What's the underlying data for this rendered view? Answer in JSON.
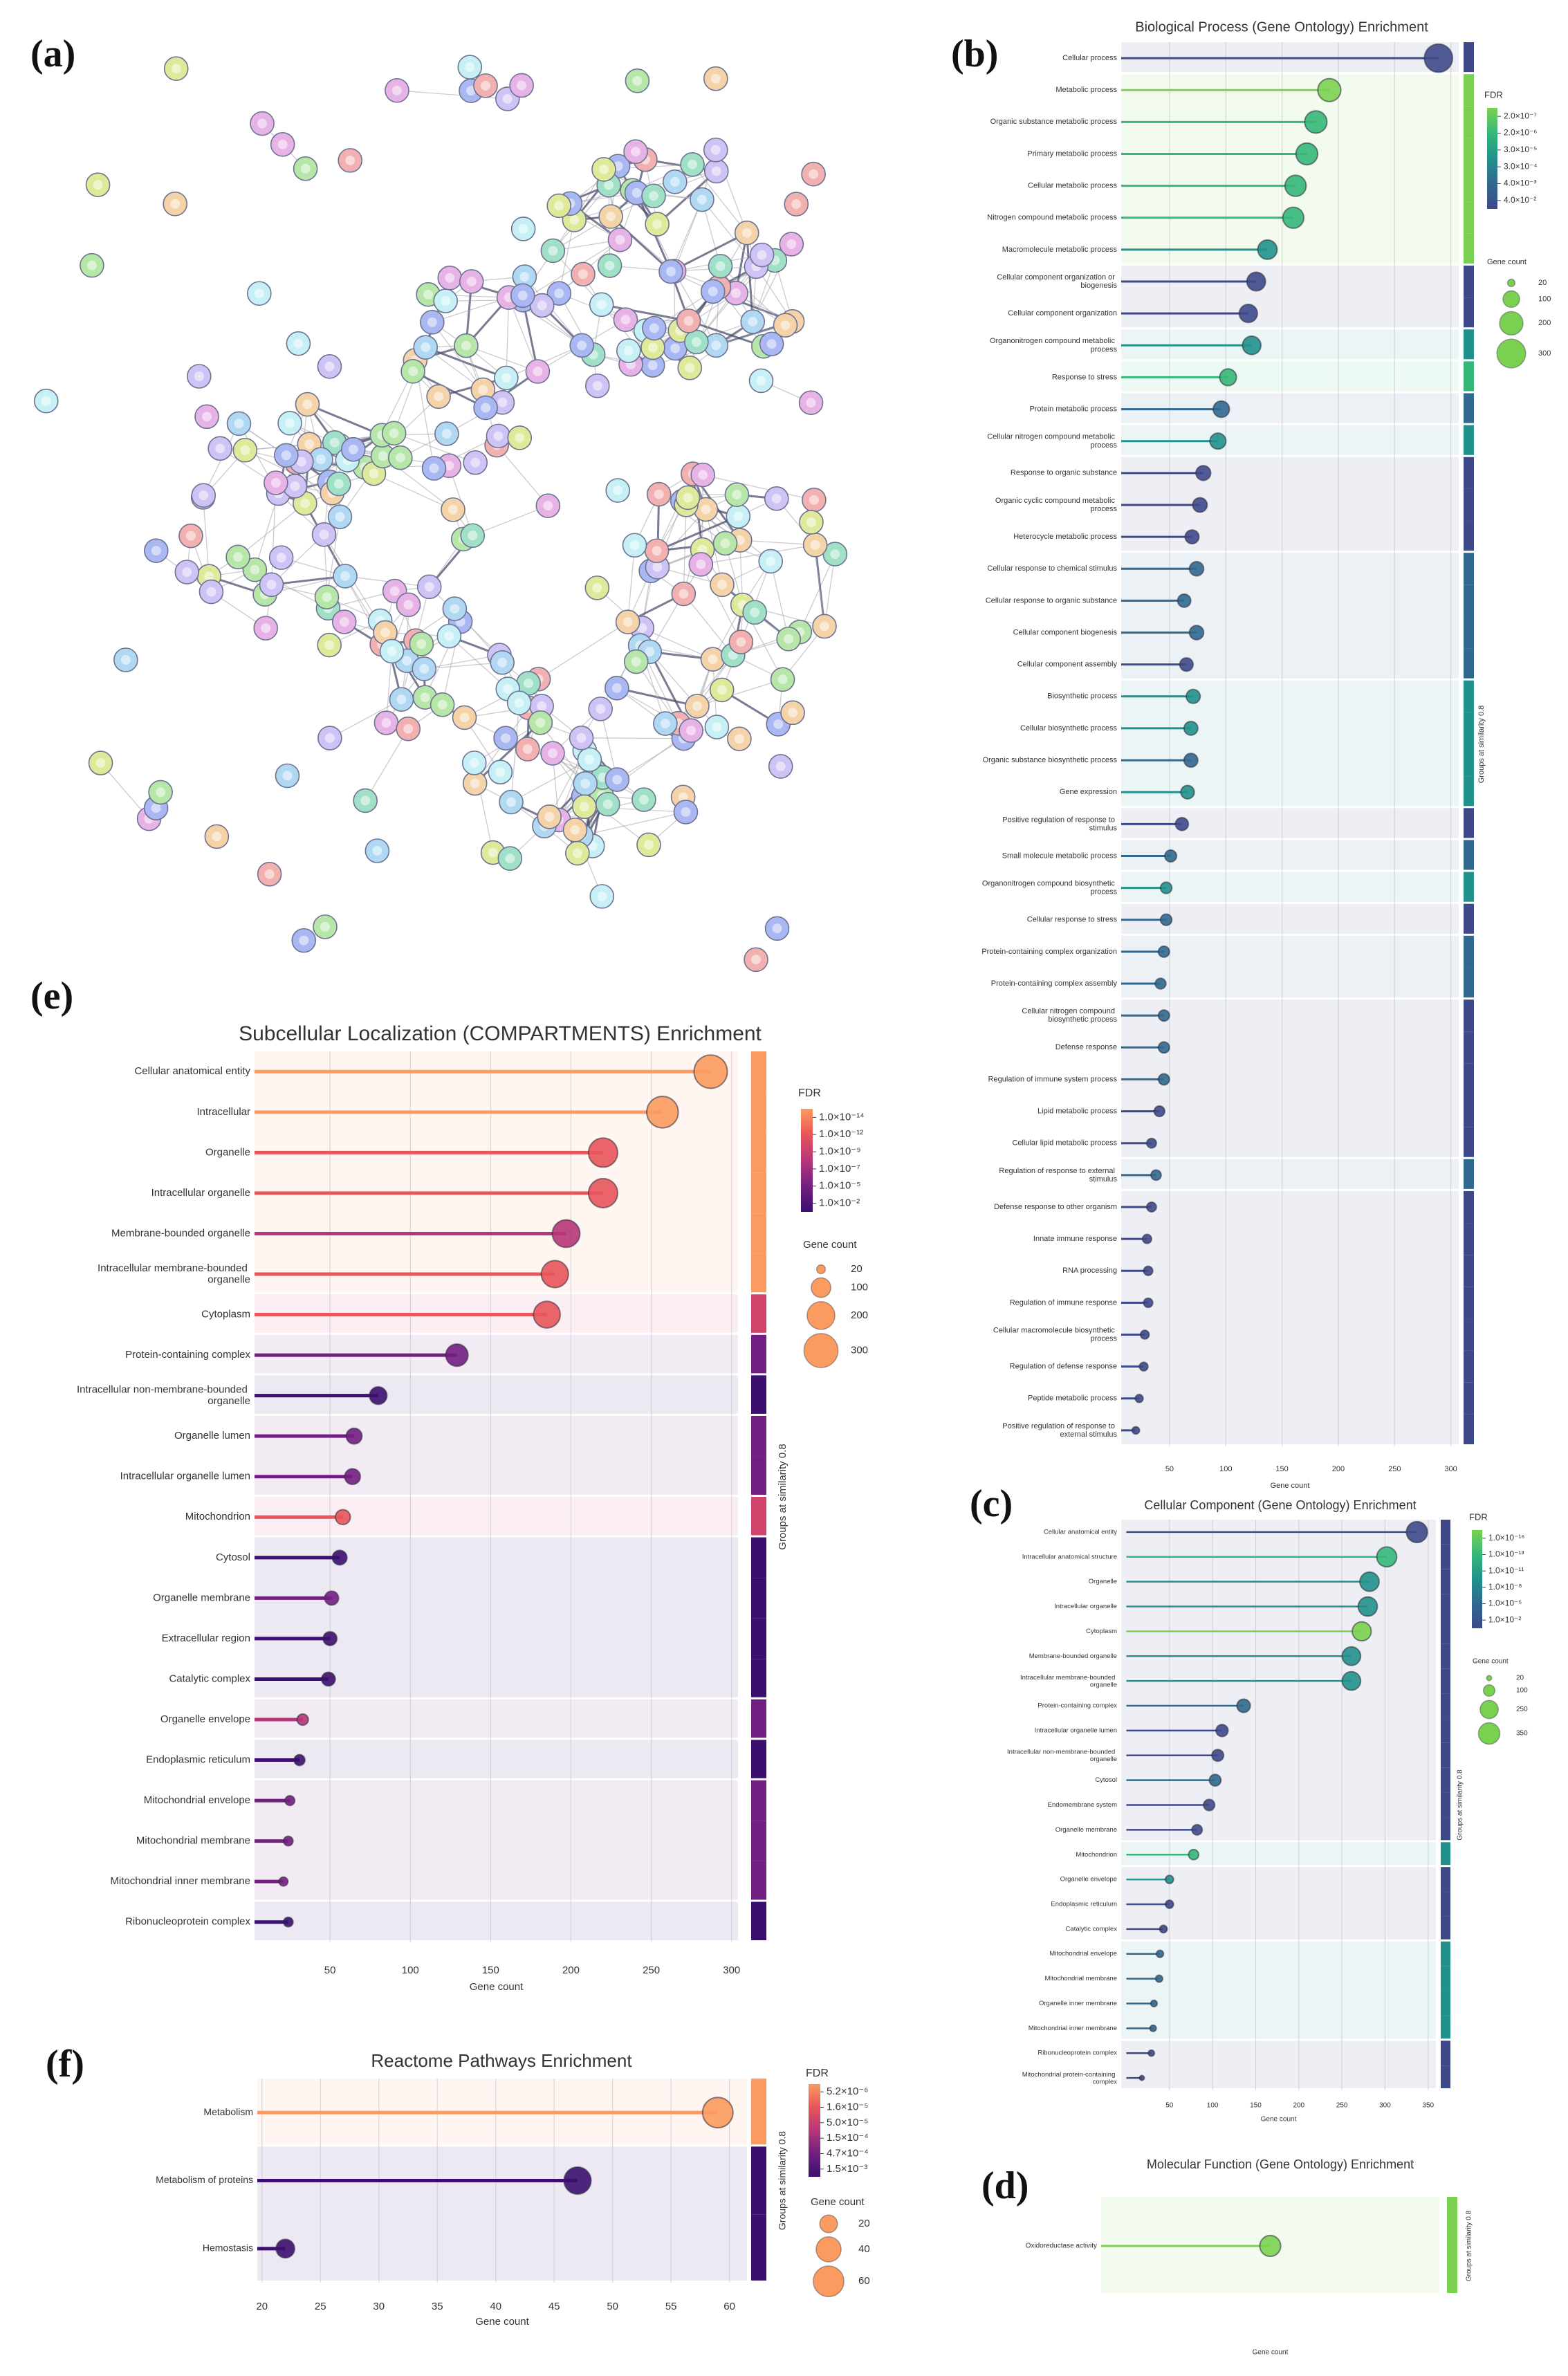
{
  "network_panel": "(a)",
  "chart_data": [
    {
      "type": "lollipop",
      "panel": "(b)",
      "title": "Biological Process (Gene Ontology) Enrichment",
      "categories": [
        "Cellular process",
        "Metabolic process",
        "Organic substance metabolic process",
        "Primary metabolic process",
        "Cellular metabolic process",
        "Nitrogen compound metabolic process",
        "Macromolecule metabolic process",
        "Cellular component organization or biogenesis",
        "Cellular component organization",
        "Organonitrogen compound metabolic process",
        "Response to stress",
        "Protein metabolic process",
        "Cellular nitrogen compound metabolic process",
        "Response to organic substance",
        "Organic cyclic compound metabolic process",
        "Heterocycle metabolic process",
        "Cellular response to chemical stimulus",
        "Cellular response to organic substance",
        "Cellular component biogenesis",
        "Cellular component assembly",
        "Biosynthetic process",
        "Cellular biosynthetic process",
        "Organic substance biosynthetic process",
        "Gene expression",
        "Positive regulation of response to stimulus",
        "Small molecule metabolic process",
        "Organonitrogen compound biosynthetic process",
        "Cellular response to stress",
        "Protein-containing complex organization",
        "Protein-containing complex assembly",
        "Cellular nitrogen compound biosynthetic process",
        "Defense response",
        "Regulation of immune system process",
        "Lipid metabolic process",
        "Cellular lipid metabolic process",
        "Regulation of response to external stimulus",
        "Defense response to other organism",
        "Innate immune response",
        "RNA processing",
        "Regulation of immune response",
        "Cellular macromolecule biosynthetic process",
        "Regulation of defense response",
        "Peptide metabolic process",
        "Positive regulation of response to external stimulus"
      ],
      "values": [
        289,
        192,
        180,
        172,
        162,
        160,
        137,
        127,
        120,
        123,
        102,
        96,
        93,
        80,
        77,
        70,
        74,
        63,
        74,
        65,
        71,
        69,
        69,
        66,
        61,
        51,
        47,
        47,
        45,
        42,
        45,
        45,
        45,
        41,
        34,
        38,
        34,
        30,
        31,
        31,
        28,
        27,
        23,
        20
      ],
      "colors": [
        "#3e4989",
        "#7ad151",
        "#35b779",
        "#35b779",
        "#35b779",
        "#35b779",
        "#21918c",
        "#3e4989",
        "#3e4989",
        "#21918c",
        "#35b779",
        "#31688e",
        "#21918c",
        "#3e4989",
        "#3e4989",
        "#3e4989",
        "#31688e",
        "#31688e",
        "#31688e",
        "#3e4989",
        "#21918c",
        "#21918c",
        "#31688e",
        "#21918c",
        "#3e4989",
        "#31688e",
        "#21918c",
        "#31688e",
        "#31688e",
        "#31688e",
        "#31688e",
        "#31688e",
        "#31688e",
        "#3e4989",
        "#3e4989",
        "#31688e",
        "#3e4989",
        "#3e4989",
        "#3e4989",
        "#3e4989",
        "#3e4989",
        "#3e4989",
        "#3e4989",
        "#3e4989"
      ],
      "group_colors": [
        "#3e4989",
        "#7ad151",
        "#7ad151",
        "#7ad151",
        "#7ad151",
        "#7ad151",
        "#7ad151",
        "#3e4989",
        "#3e4989",
        "#21918c",
        "#35b779",
        "#31688e",
        "#21918c",
        "#3e4989",
        "#3e4989",
        "#3e4989",
        "#31688e",
        "#31688e",
        "#31688e",
        "#31688e",
        "#21918c",
        "#21918c",
        "#21918c",
        "#21918c",
        "#3e4989",
        "#31688e",
        "#21918c",
        "#3e4989",
        "#31688e",
        "#31688e",
        "#3e4989",
        "#3e4989",
        "#3e4989",
        "#3e4989",
        "#3e4989",
        "#31688e",
        "#3e4989",
        "#3e4989",
        "#3e4989",
        "#3e4989",
        "#3e4989",
        "#3e4989",
        "#3e4989",
        "#3e4989"
      ],
      "xlim": [
        7,
        307
      ],
      "xticks": [
        50,
        100,
        150,
        200,
        250,
        300
      ],
      "xlabel": "Gene count",
      "grid": true,
      "group_label": "Groups at similarity 0.8",
      "fdr_legend": {
        "title": "FDR",
        "labels": [
          "2.0×10⁻⁷",
          "2.0×10⁻⁶",
          "3.0×10⁻⁵",
          "3.0×10⁻⁴",
          "4.0×10⁻³",
          "4.0×10⁻²"
        ],
        "colors": [
          "#7ad151",
          "#35b779",
          "#21918c",
          "#31688e",
          "#3e4989"
        ]
      },
      "size_legend": {
        "title": "Gene count",
        "values": [
          20,
          100,
          200,
          300
        ],
        "color": "#7ad151"
      }
    },
    {
      "type": "lollipop",
      "panel": "(c)",
      "title": "Cellular Component (Gene Ontology) Enrichment",
      "categories": [
        "Cellular anatomical entity",
        "Intracellular anatomical structure",
        "Organelle",
        "Intracellular organelle",
        "Cytoplasm",
        "Membrane-bounded organelle",
        "Intracellular membrane-bounded organelle",
        "Protein-containing complex",
        "Intracellular organelle lumen",
        "Intracellular non-membrane-bounded organelle",
        "Cytosol",
        "Endomembrane system",
        "Organelle membrane",
        "Mitochondrion",
        "Organelle envelope",
        "Endoplasmic reticulum",
        "Catalytic complex",
        "Mitochondrial envelope",
        "Mitochondrial membrane",
        "Organelle inner membrane",
        "Mitochondrial inner membrane",
        "Ribonucleoprotein complex",
        "Mitochondrial protein-containing complex"
      ],
      "values": [
        337,
        302,
        282,
        280,
        273,
        261,
        261,
        136,
        111,
        106,
        103,
        96,
        82,
        78,
        50,
        50,
        43,
        39,
        38,
        32,
        31,
        29,
        18
      ],
      "colors": [
        "#3e4989",
        "#35b779",
        "#21918c",
        "#21918c",
        "#7ad151",
        "#21918c",
        "#21918c",
        "#31688e",
        "#3e4989",
        "#3e4989",
        "#31688e",
        "#3e4989",
        "#3e4989",
        "#35b779",
        "#21918c",
        "#3e4989",
        "#3e4989",
        "#31688e",
        "#31688e",
        "#31688e",
        "#31688e",
        "#3e4989",
        "#3e4989"
      ],
      "group_colors": [
        "#3e4989",
        "#3e4989",
        "#3e4989",
        "#3e4989",
        "#3e4989",
        "#3e4989",
        "#3e4989",
        "#3e4989",
        "#3e4989",
        "#3e4989",
        "#3e4989",
        "#3e4989",
        "#3e4989",
        "#21918c",
        "#3e4989",
        "#3e4989",
        "#3e4989",
        "#21918c",
        "#21918c",
        "#21918c",
        "#21918c",
        "#3e4989",
        "#3e4989"
      ],
      "xlim": [
        -6,
        359
      ],
      "xticks": [
        50,
        100,
        150,
        200,
        250,
        300,
        350
      ],
      "xlabel": "Gene count",
      "grid": true,
      "group_label": "Groups at similarity 0.8",
      "fdr_legend": {
        "title": "FDR",
        "labels": [
          "1.0×10⁻¹⁶",
          "1.0×10⁻¹³",
          "1.0×10⁻¹¹",
          "1.0×10⁻⁸",
          "1.0×10⁻⁵",
          "1.0×10⁻²"
        ],
        "colors": [
          "#7ad151",
          "#35b779",
          "#21918c",
          "#31688e",
          "#3e4989"
        ]
      },
      "size_legend": {
        "title": "Gene count",
        "values": [
          20,
          100,
          250,
          350
        ],
        "color": "#7ad151"
      }
    },
    {
      "type": "lollipop",
      "panel": "(d)",
      "title": "Molecular Function (Gene Ontology) Enrichment",
      "categories": [
        "Oxidoreductase activity"
      ],
      "values": [
        15
      ],
      "colors": [
        "#7ad151"
      ],
      "group_colors": [
        "#7ad151"
      ],
      "xlim": [
        0,
        30
      ],
      "xlabel": "Gene count",
      "grid": true,
      "group_label": "Groups at similarity 0.8"
    },
    {
      "type": "lollipop",
      "panel": "(e)",
      "title": "Subcellular Localization (COMPARTMENTS) Enrichment",
      "categories": [
        "Cellular anatomical entity",
        "Intracellular",
        "Organelle",
        "Intracellular organelle",
        "Membrane-bounded organelle",
        "Intracellular membrane-bounded organelle",
        "Cytoplasm",
        "Protein-containing complex",
        "Intracellular non-membrane-bounded organelle",
        "Organelle lumen",
        "Intracellular organelle lumen",
        "Mitochondrion",
        "Cytosol",
        "Organelle membrane",
        "Extracellular region",
        "Catalytic complex",
        "Organelle envelope",
        "Endoplasmic reticulum",
        "Mitochondrial envelope",
        "Mitochondrial membrane",
        "Mitochondrial inner membrane",
        "Ribonucleoprotein complex"
      ],
      "values": [
        287,
        257,
        220,
        220,
        197,
        190,
        185,
        129,
        80,
        65,
        64,
        58,
        56,
        51,
        50,
        49,
        33,
        31,
        25,
        24,
        21,
        24
      ],
      "colors": [
        "#fb9b5f",
        "#fb9b5f",
        "#e8555a",
        "#e8555a",
        "#b63679",
        "#e8555a",
        "#e8555a",
        "#721f81",
        "#3b0f70",
        "#721f81",
        "#721f81",
        "#e8555a",
        "#3b0f70",
        "#721f81",
        "#3b0f70",
        "#3b0f70",
        "#b63679",
        "#3b0f70",
        "#721f81",
        "#721f81",
        "#721f81",
        "#3b0f70"
      ],
      "group_colors": [
        "#fb9b5f",
        "#fb9b5f",
        "#fb9b5f",
        "#fb9b5f",
        "#fb9b5f",
        "#fb9b5f",
        "#d0436a",
        "#721f81",
        "#3b0f70",
        "#721f81",
        "#721f81",
        "#d0436a",
        "#3b0f70",
        "#3b0f70",
        "#3b0f70",
        "#3b0f70",
        "#721f81",
        "#3b0f70",
        "#721f81",
        "#721f81",
        "#721f81",
        "#3b0f70"
      ],
      "xlim": [
        3,
        304
      ],
      "xticks": [
        50,
        100,
        150,
        200,
        250,
        300
      ],
      "xlabel": "Gene count",
      "grid": true,
      "group_label": "Groups at similarity 0.8",
      "fdr_legend": {
        "title": "FDR",
        "labels": [
          "1.0×10⁻¹⁴",
          "1.0×10⁻¹²",
          "1.0×10⁻⁹",
          "1.0×10⁻⁷",
          "1.0×10⁻⁵",
          "1.0×10⁻²"
        ],
        "colors": [
          "#fb9b5f",
          "#e8555a",
          "#b63679",
          "#721f81",
          "#3b0f70"
        ]
      },
      "size_legend": {
        "title": "Gene count",
        "values": [
          20,
          100,
          200,
          300
        ],
        "color": "#fb9b5f"
      }
    },
    {
      "type": "lollipop",
      "panel": "(f)",
      "title": "Reactome Pathways Enrichment",
      "categories": [
        "Metabolism",
        "Metabolism of proteins",
        "Hemostasis"
      ],
      "values": [
        59,
        47,
        22
      ],
      "colors": [
        "#fb9b5f",
        "#3b0f70",
        "#3b0f70"
      ],
      "group_colors": [
        "#fb9b5f",
        "#3b0f70",
        "#3b0f70"
      ],
      "xlim": [
        19.6,
        61.5
      ],
      "xticks": [
        20,
        25,
        30,
        35,
        40,
        45,
        50,
        55,
        60
      ],
      "xlabel": "Gene count",
      "grid": true,
      "group_label": "Groups at similarity 0.8",
      "fdr_legend": {
        "title": "FDR",
        "labels": [
          "5.2×10⁻⁶",
          "1.6×10⁻⁵",
          "5.0×10⁻⁵",
          "1.5×10⁻⁴",
          "4.7×10⁻⁴",
          "1.5×10⁻³"
        ],
        "colors": [
          "#fb9b5f",
          "#e8555a",
          "#b63679",
          "#721f81",
          "#3b0f70"
        ]
      },
      "size_legend": {
        "title": "Gene count",
        "values": [
          20,
          40,
          60
        ],
        "color": "#fb9b5f"
      }
    }
  ]
}
